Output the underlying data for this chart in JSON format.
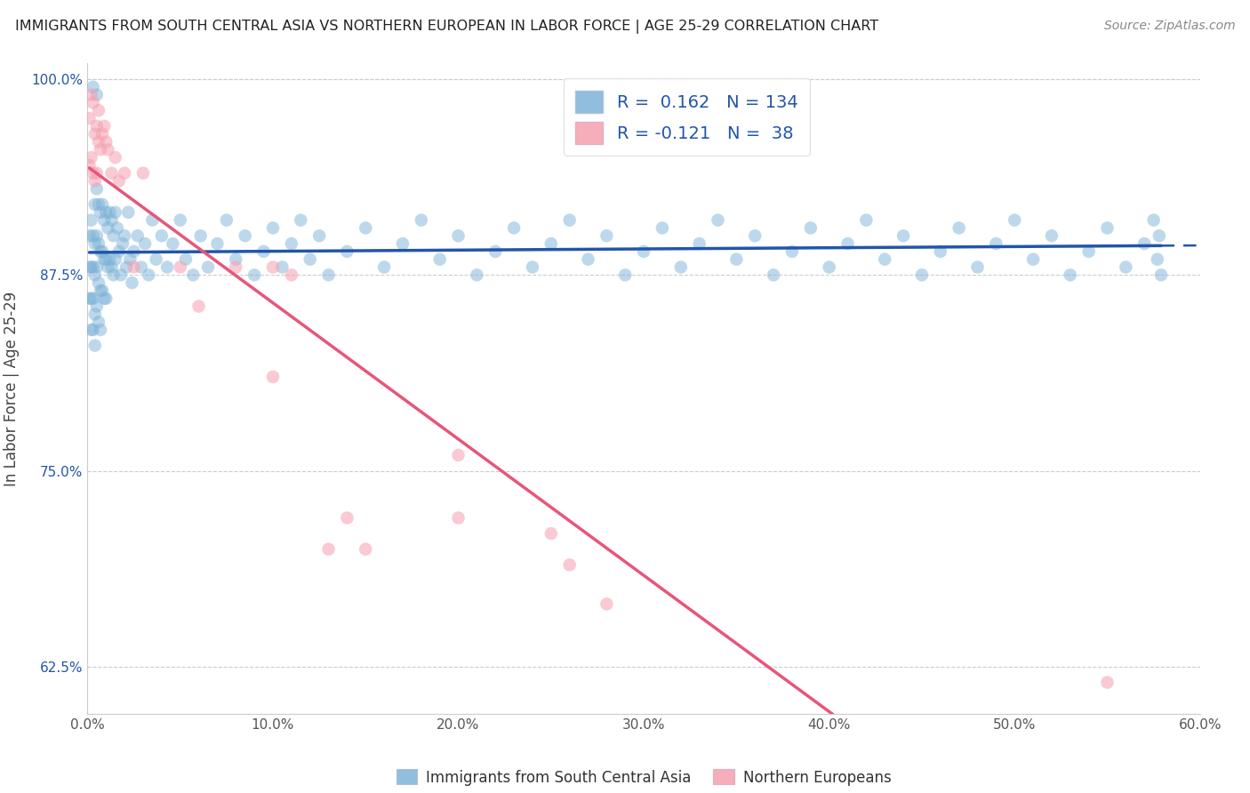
{
  "title": "IMMIGRANTS FROM SOUTH CENTRAL ASIA VS NORTHERN EUROPEAN IN LABOR FORCE | AGE 25-29 CORRELATION CHART",
  "source": "Source: ZipAtlas.com",
  "ylabel": "In Labor Force | Age 25-29",
  "xlim": [
    0.0,
    0.6
  ],
  "ylim": [
    0.595,
    1.01
  ],
  "xticks": [
    0.0,
    0.1,
    0.2,
    0.3,
    0.4,
    0.5,
    0.6
  ],
  "xticklabels": [
    "0.0%",
    "10.0%",
    "20.0%",
    "30.0%",
    "40.0%",
    "50.0%",
    "60.0%"
  ],
  "yticks": [
    0.625,
    0.75,
    0.875,
    1.0
  ],
  "yticklabels": [
    "62.5%",
    "75.0%",
    "87.5%",
    "100.0%"
  ],
  "blue_color": "#7EB3D8",
  "pink_color": "#F5A0B0",
  "blue_line_color": "#2255AA",
  "pink_line_color": "#E8557A",
  "legend_blue_R": "0.162",
  "legend_blue_N": "134",
  "legend_pink_R": "-0.121",
  "legend_pink_N": "38",
  "legend_label_blue": "Immigrants from South Central Asia",
  "legend_label_pink": "Northern Europeans",
  "background_color": "#ffffff",
  "grid_color": "#CCCCCC",
  "blue_scatter_x": [
    0.001,
    0.001,
    0.001,
    0.002,
    0.002,
    0.002,
    0.002,
    0.003,
    0.003,
    0.003,
    0.003,
    0.003,
    0.004,
    0.004,
    0.004,
    0.004,
    0.004,
    0.005,
    0.005,
    0.005,
    0.005,
    0.005,
    0.006,
    0.006,
    0.006,
    0.006,
    0.007,
    0.007,
    0.007,
    0.007,
    0.008,
    0.008,
    0.008,
    0.009,
    0.009,
    0.009,
    0.01,
    0.01,
    0.01,
    0.011,
    0.011,
    0.012,
    0.012,
    0.013,
    0.013,
    0.014,
    0.014,
    0.015,
    0.015,
    0.016,
    0.017,
    0.018,
    0.019,
    0.02,
    0.021,
    0.022,
    0.023,
    0.024,
    0.025,
    0.027,
    0.029,
    0.031,
    0.033,
    0.035,
    0.037,
    0.04,
    0.043,
    0.046,
    0.05,
    0.053,
    0.057,
    0.061,
    0.065,
    0.07,
    0.075,
    0.08,
    0.085,
    0.09,
    0.095,
    0.1,
    0.105,
    0.11,
    0.115,
    0.12,
    0.125,
    0.13,
    0.14,
    0.15,
    0.16,
    0.17,
    0.18,
    0.19,
    0.2,
    0.21,
    0.22,
    0.23,
    0.24,
    0.25,
    0.26,
    0.27,
    0.28,
    0.29,
    0.3,
    0.31,
    0.32,
    0.33,
    0.34,
    0.35,
    0.36,
    0.37,
    0.38,
    0.39,
    0.4,
    0.41,
    0.42,
    0.43,
    0.44,
    0.45,
    0.46,
    0.47,
    0.48,
    0.49,
    0.5,
    0.51,
    0.52,
    0.53,
    0.54,
    0.55,
    0.56,
    0.57,
    0.575,
    0.577,
    0.578,
    0.579
  ],
  "blue_scatter_y": [
    0.88,
    0.9,
    0.86,
    0.91,
    0.88,
    0.86,
    0.84,
    0.9,
    0.88,
    0.86,
    0.84,
    0.995,
    0.92,
    0.895,
    0.875,
    0.85,
    0.83,
    0.93,
    0.9,
    0.88,
    0.855,
    0.99,
    0.92,
    0.895,
    0.87,
    0.845,
    0.915,
    0.89,
    0.865,
    0.84,
    0.92,
    0.89,
    0.865,
    0.91,
    0.885,
    0.86,
    0.915,
    0.885,
    0.86,
    0.905,
    0.88,
    0.915,
    0.885,
    0.91,
    0.88,
    0.9,
    0.875,
    0.915,
    0.885,
    0.905,
    0.89,
    0.875,
    0.895,
    0.9,
    0.88,
    0.915,
    0.885,
    0.87,
    0.89,
    0.9,
    0.88,
    0.895,
    0.875,
    0.91,
    0.885,
    0.9,
    0.88,
    0.895,
    0.91,
    0.885,
    0.875,
    0.9,
    0.88,
    0.895,
    0.91,
    0.885,
    0.9,
    0.875,
    0.89,
    0.905,
    0.88,
    0.895,
    0.91,
    0.885,
    0.9,
    0.875,
    0.89,
    0.905,
    0.88,
    0.895,
    0.91,
    0.885,
    0.9,
    0.875,
    0.89,
    0.905,
    0.88,
    0.895,
    0.91,
    0.885,
    0.9,
    0.875,
    0.89,
    0.905,
    0.88,
    0.895,
    0.91,
    0.885,
    0.9,
    0.875,
    0.89,
    0.905,
    0.88,
    0.895,
    0.91,
    0.885,
    0.9,
    0.875,
    0.89,
    0.905,
    0.88,
    0.895,
    0.91,
    0.885,
    0.9,
    0.875,
    0.89,
    0.905,
    0.88,
    0.895,
    0.91,
    0.885,
    0.9,
    0.875
  ],
  "pink_scatter_x": [
    0.001,
    0.001,
    0.002,
    0.002,
    0.003,
    0.003,
    0.004,
    0.004,
    0.005,
    0.005,
    0.006,
    0.006,
    0.007,
    0.008,
    0.009,
    0.01,
    0.011,
    0.013,
    0.015,
    0.017,
    0.02,
    0.025,
    0.03,
    0.05,
    0.06,
    0.08,
    0.1,
    0.1,
    0.11,
    0.13,
    0.14,
    0.15,
    0.2,
    0.2,
    0.25,
    0.26,
    0.28,
    0.55
  ],
  "pink_scatter_y": [
    0.975,
    0.945,
    0.99,
    0.95,
    0.985,
    0.94,
    0.965,
    0.935,
    0.97,
    0.94,
    0.98,
    0.96,
    0.955,
    0.965,
    0.97,
    0.96,
    0.955,
    0.94,
    0.95,
    0.935,
    0.94,
    0.88,
    0.94,
    0.88,
    0.855,
    0.88,
    0.88,
    0.81,
    0.875,
    0.7,
    0.72,
    0.7,
    0.76,
    0.72,
    0.71,
    0.69,
    0.665,
    0.615
  ]
}
